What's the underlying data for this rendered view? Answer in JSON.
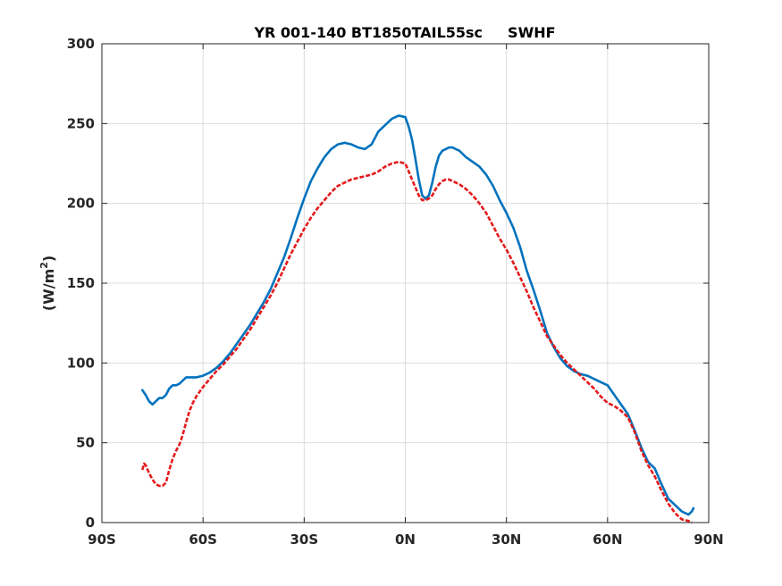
{
  "chart_data": {
    "type": "line",
    "title": "YR 001-140 BT1850TAIL55sc",
    "title_suffix": "SWHF",
    "xlabel": "",
    "ylabel_text": "(W/m",
    "ylabel_sup": "2",
    "ylabel_close": ")",
    "xlim": [
      -90,
      90
    ],
    "ylim": [
      0,
      300
    ],
    "x_ticks": [
      -90,
      -60,
      -30,
      0,
      30,
      60,
      90
    ],
    "x_tick_labels": [
      "90S",
      "60S",
      "30S",
      "0N",
      "30N",
      "60N",
      "90N"
    ],
    "y_ticks": [
      0,
      50,
      100,
      150,
      200,
      250,
      300
    ],
    "y_tick_labels": [
      "0",
      "50",
      "100",
      "150",
      "200",
      "250",
      "300"
    ],
    "grid": true,
    "series": [
      {
        "color": "#0072bd",
        "style": "solid",
        "x": [
          -78,
          -77,
          -76,
          -75,
          -74,
          -73,
          -72,
          -71,
          -70,
          -69,
          -68,
          -67,
          -66,
          -65,
          -64,
          -63,
          -62,
          -60,
          -58,
          -56,
          -54,
          -52,
          -50,
          -48,
          -46,
          -44,
          -42,
          -40,
          -38,
          -36,
          -34,
          -32,
          -30,
          -28,
          -26,
          -24,
          -22,
          -20,
          -18,
          -16,
          -14,
          -12,
          -10,
          -8,
          -6,
          -4,
          -2,
          0,
          1,
          2,
          3,
          4,
          5,
          6,
          7,
          8,
          9,
          10,
          11,
          12,
          13,
          14,
          15,
          16,
          18,
          20,
          22,
          24,
          26,
          28,
          30,
          32,
          34,
          36,
          38,
          40,
          42,
          44,
          46,
          48,
          50,
          52,
          54,
          56,
          58,
          60,
          62,
          64,
          66,
          68,
          70,
          72,
          74,
          76,
          78,
          80,
          82,
          84,
          85,
          85.5
        ],
        "values": [
          83,
          80,
          76,
          74,
          76,
          78,
          78,
          80,
          84,
          86,
          86,
          87,
          89,
          91,
          91,
          91,
          91,
          92,
          94,
          97,
          101,
          106,
          112,
          118,
          124,
          131,
          138,
          146,
          156,
          166,
          178,
          191,
          203,
          214,
          222,
          229,
          234,
          237,
          238,
          237,
          235,
          234,
          237,
          245,
          249,
          253,
          255,
          254,
          248,
          240,
          228,
          215,
          205,
          203,
          205,
          213,
          223,
          230,
          233,
          234,
          235,
          235,
          234,
          233,
          229,
          226,
          223,
          218,
          211,
          202,
          194,
          185,
          173,
          158,
          146,
          133,
          119,
          110,
          103,
          98,
          95,
          93,
          92,
          90,
          88,
          86,
          80,
          74,
          68,
          58,
          47,
          38,
          34,
          24,
          15,
          11,
          7,
          5,
          7,
          9
        ]
      },
      {
        "color": "#e41a1c",
        "style": "dashed",
        "x": [
          -78,
          -77.5,
          -77,
          -76,
          -75,
          -74,
          -73,
          -72,
          -71,
          -70,
          -69,
          -68,
          -67,
          -66,
          -65,
          -64,
          -63,
          -62,
          -60,
          -58,
          -56,
          -54,
          -52,
          -50,
          -48,
          -46,
          -44,
          -42,
          -40,
          -38,
          -36,
          -34,
          -32,
          -30,
          -28,
          -26,
          -24,
          -22,
          -20,
          -18,
          -16,
          -14,
          -12,
          -10,
          -8,
          -6,
          -4,
          -2,
          0,
          1,
          2,
          3,
          4,
          5,
          6,
          7,
          8,
          9,
          10,
          11,
          12,
          13,
          14,
          16,
          18,
          20,
          22,
          24,
          26,
          28,
          30,
          32,
          34,
          36,
          38,
          40,
          42,
          44,
          46,
          48,
          50,
          52,
          54,
          56,
          58,
          60,
          62,
          64,
          66,
          68,
          70,
          72,
          74,
          76,
          78,
          80,
          82,
          84,
          85
        ],
        "values": [
          33,
          37,
          36,
          31,
          27,
          24,
          23,
          23,
          25,
          33,
          40,
          45,
          49,
          55,
          63,
          70,
          75,
          79,
          85,
          90,
          95,
          99,
          104,
          109,
          115,
          121,
          128,
          135,
          142,
          150,
          159,
          168,
          176,
          184,
          191,
          197,
          202,
          207,
          211,
          213,
          215,
          216,
          217,
          218,
          220,
          223,
          225,
          226,
          225,
          220,
          215,
          210,
          205,
          202,
          202,
          203,
          205,
          209,
          212,
          214,
          215,
          215,
          214,
          212,
          209,
          205,
          200,
          194,
          186,
          178,
          171,
          163,
          154,
          145,
          135,
          126,
          117,
          111,
          105,
          100,
          96,
          92,
          88,
          84,
          79,
          75,
          73,
          70,
          66,
          57,
          45,
          36,
          29,
          20,
          12,
          6,
          2,
          1,
          0
        ]
      }
    ]
  }
}
